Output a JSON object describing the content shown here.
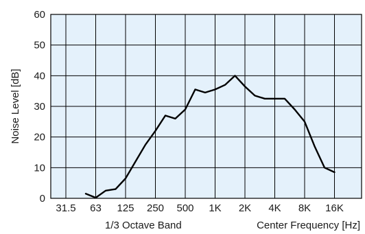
{
  "chart_data": {
    "type": "line",
    "title": "",
    "xlabel_left": "1/3 Octave Band",
    "xlabel_right": "Center Frequency  [Hz]",
    "ylabel": "Noise Level  [dB]",
    "ylim": [
      0,
      60
    ],
    "y_ticks": [
      "0",
      "10",
      "20",
      "30",
      "40",
      "50",
      "60"
    ],
    "x_tick_labels": [
      "31.5",
      "63",
      "125",
      "250",
      "500",
      "1K",
      "2K",
      "4K",
      "8K",
      "16K"
    ],
    "x_scale": "1/3-octave band index",
    "grid": true,
    "background_color": "#e4f1fb",
    "line_color": "#000000",
    "series": [
      {
        "x": [
          "50",
          "63",
          "80",
          "100",
          "125",
          "160",
          "200",
          "250",
          "315",
          "400",
          "500",
          "630",
          "800",
          "1K",
          "1.25K",
          "1.6K",
          "2K",
          "2.5K",
          "3.15K",
          "4K",
          "5K",
          "6.3K",
          "8K",
          "10K",
          "12.5K",
          "16K"
        ],
        "values": [
          1.5,
          0.2,
          2.5,
          3,
          6.5,
          12,
          17.5,
          22,
          27,
          26,
          29,
          35.5,
          34.5,
          35.5,
          37,
          40,
          36.5,
          33.5,
          32.5,
          32.5,
          32.5,
          29,
          25,
          17,
          10,
          8.5
        ]
      }
    ]
  }
}
